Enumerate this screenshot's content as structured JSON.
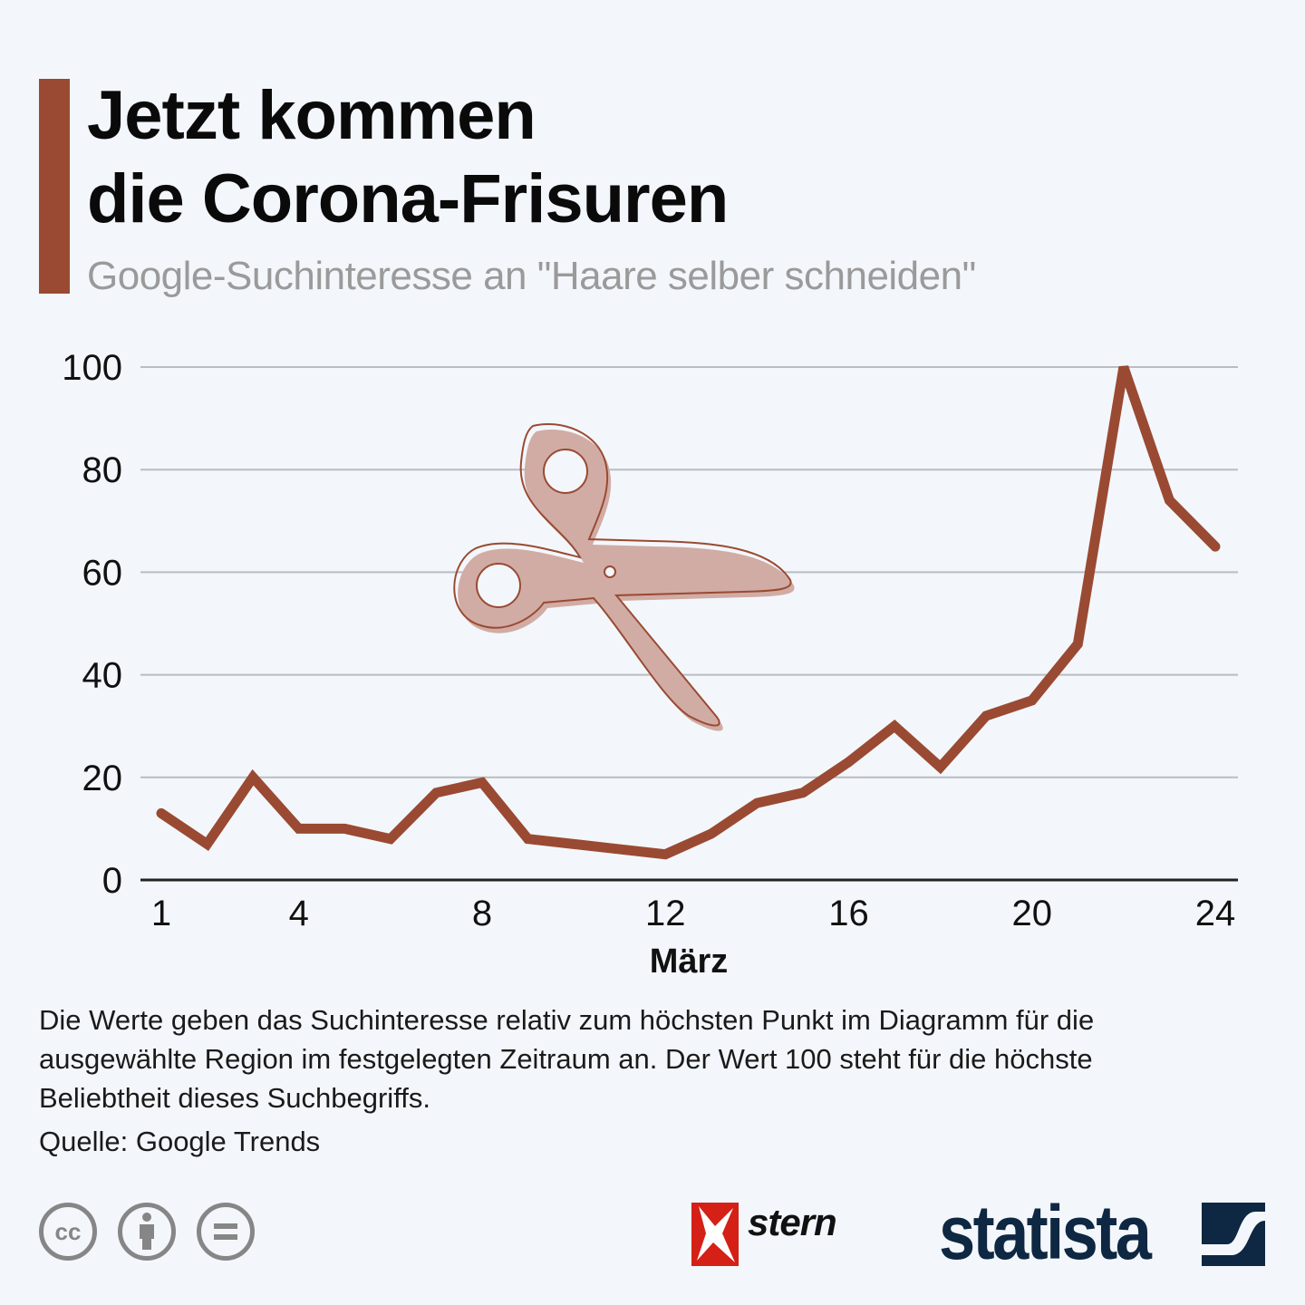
{
  "header": {
    "title_line1": "Jetzt kommen",
    "title_line2": "die Corona-Frisuren",
    "subtitle": "Google-Suchinteresse an \"Haare selber schneiden\""
  },
  "colors": {
    "accent": "#9a4a32",
    "line": "#9a4a32",
    "scissors_fill": "#d1aca5",
    "grid": "#b9bdc2",
    "axis": "#222222"
  },
  "chart_data": {
    "type": "line",
    "title": "Jetzt kommen die Corona-Frisuren",
    "subtitle": "Google-Suchinteresse an \"Haare selber schneiden\"",
    "xlabel": "März",
    "ylabel": "",
    "x": [
      1,
      2,
      3,
      4,
      5,
      6,
      7,
      8,
      9,
      10,
      11,
      12,
      13,
      14,
      15,
      16,
      17,
      18,
      19,
      20,
      21,
      22,
      23,
      24
    ],
    "series": [
      {
        "name": "Haare selber schneiden",
        "values": [
          13,
          7,
          20,
          10,
          10,
          8,
          17,
          19,
          8,
          7,
          6,
          5,
          9,
          15,
          17,
          23,
          30,
          22,
          32,
          35,
          46,
          100,
          74,
          65
        ]
      }
    ],
    "xticks": [
      "1",
      "4",
      "8",
      "12",
      "16",
      "20",
      "24"
    ],
    "xtick_values": [
      1,
      4,
      8,
      12,
      16,
      20,
      24
    ],
    "yticks": [
      "0",
      "20",
      "40",
      "60",
      "80",
      "100"
    ],
    "ytick_values": [
      0,
      20,
      40,
      60,
      80,
      100
    ],
    "xlim": [
      1,
      24
    ],
    "ylim": [
      0,
      100
    ],
    "grid": true,
    "legend": "none",
    "annotation_icon": "scissors-icon"
  },
  "footer": {
    "note": "Die Werte geben das Suchinteresse relativ zum höchsten Punkt im Diagramm für die ausgewählte Region im festgelegten Zeitraum an. Der Wert 100 steht für die höchste Beliebtheit dieses Suchbegriffs.",
    "source": "Quelle: Google Trends",
    "license_icons": [
      "cc-icon",
      "attribution-icon",
      "no-derivatives-icon"
    ],
    "cc_label": "cc",
    "stern_label": "stern",
    "statista_label": "statista"
  }
}
